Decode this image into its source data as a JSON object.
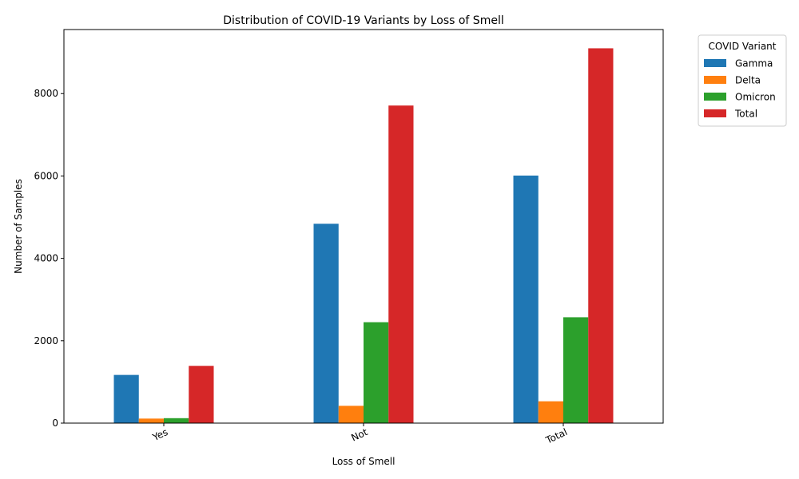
{
  "chart_data": {
    "type": "bar",
    "title": "Distribution of COVID-19 Variants by Loss of Smell",
    "xlabel": "Loss of Smell",
    "ylabel": "Number of Samples",
    "categories": [
      "Yes",
      "Not",
      "Total"
    ],
    "series": [
      {
        "name": "Gamma",
        "color": "#1f77b4",
        "values": [
          1170,
          4840,
          6010
        ]
      },
      {
        "name": "Delta",
        "color": "#ff7f0e",
        "values": [
          110,
          420,
          530
        ]
      },
      {
        "name": "Omicron",
        "color": "#2ca02c",
        "values": [
          120,
          2450,
          2570
        ]
      },
      {
        "name": "Total",
        "color": "#d62728",
        "values": [
          1390,
          7710,
          9100
        ]
      }
    ],
    "ylim": [
      0,
      9555
    ],
    "yticks": [
      0,
      2000,
      4000,
      6000,
      8000
    ],
    "legend": {
      "title": "COVID Variant",
      "placement": "outside-top-right"
    },
    "grid": false
  }
}
